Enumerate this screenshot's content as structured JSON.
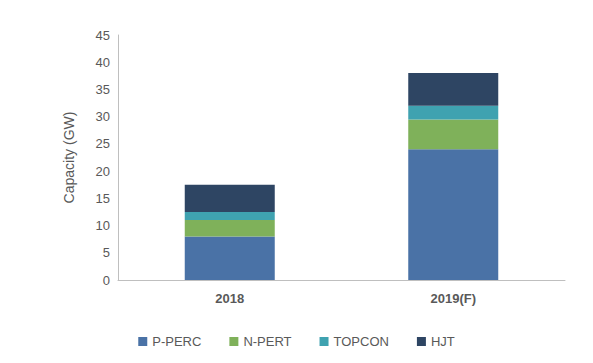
{
  "chart_data": {
    "type": "bar",
    "stacked": true,
    "grid": false,
    "legend": "bottom",
    "y_label": "Capacity (GW)",
    "categories": [
      "2018",
      "2019(F)"
    ],
    "series": [
      {
        "name": "P-PERC",
        "color": "#4a72a6",
        "values": [
          8,
          24
        ]
      },
      {
        "name": "N-PERT",
        "color": "#7fb15a",
        "values": [
          3,
          5.5
        ]
      },
      {
        "name": "TOPCON",
        "color": "#3fa2b0",
        "values": [
          1.5,
          2.5
        ]
      },
      {
        "name": "HJT",
        "color": "#2e4563",
        "values": [
          5,
          6
        ]
      }
    ],
    "ylim": [
      0,
      45
    ],
    "yticks": [
      0,
      5,
      10,
      15,
      20,
      25,
      30,
      35,
      40,
      45
    ]
  }
}
